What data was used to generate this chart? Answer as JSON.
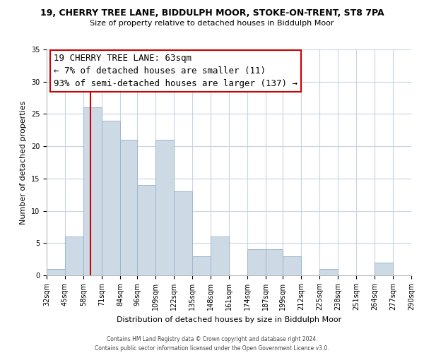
{
  "title": "19, CHERRY TREE LANE, BIDDULPH MOOR, STOKE-ON-TRENT, ST8 7PA",
  "subtitle": "Size of property relative to detached houses in Biddulph Moor",
  "xlabel": "Distribution of detached houses by size in Biddulph Moor",
  "ylabel": "Number of detached properties",
  "bar_color": "#cdd9e5",
  "bar_edge_color": "#9db8cc",
  "vline_x": 63,
  "vline_color": "#cc0000",
  "annotation_lines": [
    "19 CHERRY TREE LANE: 63sqm",
    "← 7% of detached houses are smaller (11)",
    "93% of semi-detached houses are larger (137) →"
  ],
  "bin_edges": [
    32,
    45,
    58,
    71,
    84,
    96,
    109,
    122,
    135,
    148,
    161,
    174,
    187,
    199,
    212,
    225,
    238,
    251,
    264,
    277,
    290
  ],
  "counts": [
    1,
    6,
    26,
    24,
    21,
    14,
    21,
    13,
    3,
    6,
    0,
    4,
    4,
    3,
    0,
    1,
    0,
    0,
    2,
    0
  ],
  "ylim": [
    0,
    35
  ],
  "yticks": [
    0,
    5,
    10,
    15,
    20,
    25,
    30,
    35
  ],
  "footnote1": "Contains HM Land Registry data © Crown copyright and database right 2024.",
  "footnote2": "Contains public sector information licensed under the Open Government Licence v3.0.",
  "bg_color": "#ffffff",
  "grid_color": "#c8d4e0",
  "ann_fontsize": 9,
  "title_fontsize": 9,
  "subtitle_fontsize": 8,
  "xlabel_fontsize": 8,
  "ylabel_fontsize": 8,
  "tick_fontsize": 7,
  "footnote_fontsize": 5.5
}
